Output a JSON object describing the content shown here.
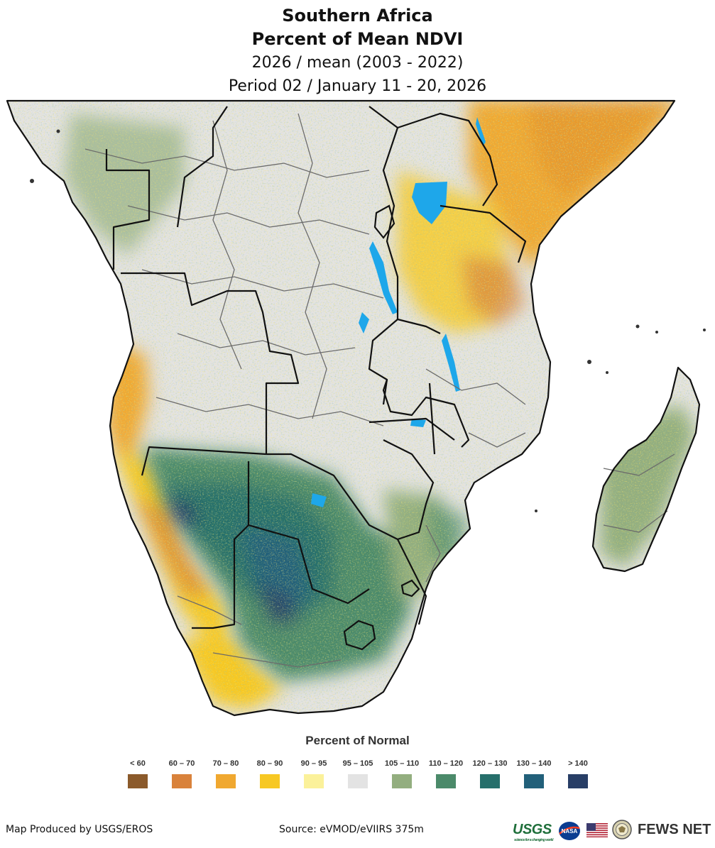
{
  "title": {
    "line1": "Southern Africa",
    "line2": "Percent of Mean NDVI",
    "line3": "2026 / mean (2003 - 2022)",
    "line4": "Period 02 / January 11 - 20, 2026"
  },
  "legend": {
    "title": "Percent of Normal",
    "items": [
      {
        "label": "< 60",
        "color": "#8b5a2b"
      },
      {
        "label": "60 – 70",
        "color": "#d9823b"
      },
      {
        "label": "70 – 80",
        "color": "#f0a830"
      },
      {
        "label": "80 – 90",
        "color": "#f7c823"
      },
      {
        "label": "90 – 95",
        "color": "#fbf19a"
      },
      {
        "label": "95 – 105",
        "color": "#e3e3e3"
      },
      {
        "label": "105 – 110",
        "color": "#93ae7f"
      },
      {
        "label": "110 – 120",
        "color": "#4b8a6a"
      },
      {
        "label": "120 – 130",
        "color": "#266f6b"
      },
      {
        "label": "130 – 140",
        "color": "#22607a"
      },
      {
        "label": "> 140",
        "color": "#283e66"
      }
    ]
  },
  "colors": {
    "water": "#1ea7ea",
    "border": "#111111",
    "admin_border": "#6b6b6b"
  },
  "footer": {
    "credit": "Map Produced by USGS/EROS",
    "source": "Source: eVMOD/eVIIRS 375m",
    "logos": {
      "usgs": "USGS",
      "usgs_tagline": "science for a changing world",
      "nasa": "NASA",
      "fews": "FEWS NET"
    },
    "flag_icon": "us-flag-icon",
    "seal_icon": "state-department-seal-icon"
  }
}
